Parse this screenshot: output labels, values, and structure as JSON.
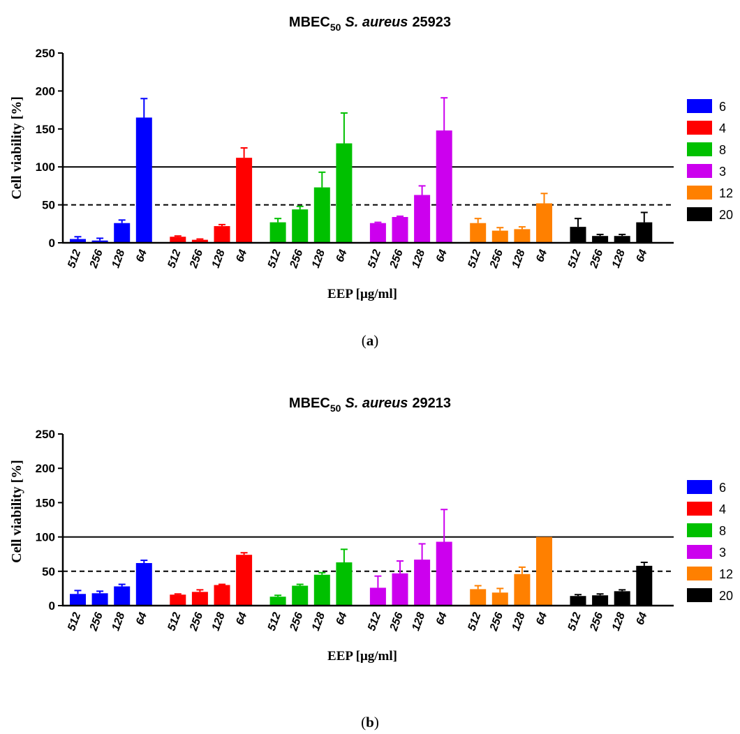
{
  "chart_data": [
    {
      "type": "bar",
      "title": "MBEC",
      "title_subscript": "50",
      "title_species": "S. aureus",
      "title_strain": "25923",
      "ylabel": "Cell viability [%]",
      "xlabel": "EEP [μg/ml]",
      "ylim": [
        0,
        250
      ],
      "yticks": [
        0,
        50,
        100,
        150,
        200,
        250
      ],
      "reference_lines": [
        {
          "value": 100,
          "style": "solid"
        },
        {
          "value": 50,
          "style": "dashed"
        }
      ],
      "legend_position": "right",
      "categories": [
        "512",
        "256",
        "128",
        "64"
      ],
      "series": [
        {
          "name": "6",
          "color": "#0000ff",
          "values": [
            5,
            3,
            26,
            165
          ],
          "errors": [
            3,
            3,
            4,
            25
          ]
        },
        {
          "name": "4",
          "color": "#ff0000",
          "values": [
            8,
            4,
            22,
            112
          ],
          "errors": [
            1,
            1,
            2,
            13
          ]
        },
        {
          "name": "8",
          "color": "#00c000",
          "values": [
            27,
            44,
            73,
            131
          ],
          "errors": [
            5,
            4,
            20,
            40
          ]
        },
        {
          "name": "3",
          "color": "#cc00ee",
          "values": [
            26,
            34,
            63,
            148
          ],
          "errors": [
            1,
            1,
            12,
            43
          ]
        },
        {
          "name": "12",
          "color": "#ff8000",
          "values": [
            26,
            16,
            18,
            52
          ],
          "errors": [
            6,
            4,
            3,
            13
          ]
        },
        {
          "name": "20",
          "color": "#000000",
          "values": [
            21,
            9,
            9,
            27
          ],
          "errors": [
            11,
            2,
            2,
            13
          ]
        }
      ],
      "caption_label": "a"
    },
    {
      "type": "bar",
      "title": "MBEC",
      "title_subscript": "50",
      "title_species": "S. aureus",
      "title_strain": "29213",
      "ylabel": "Cell viability [%]",
      "xlabel": "EEP [μg/ml]",
      "ylim": [
        0,
        250
      ],
      "yticks": [
        0,
        50,
        100,
        150,
        200,
        250
      ],
      "reference_lines": [
        {
          "value": 100,
          "style": "solid"
        },
        {
          "value": 50,
          "style": "dashed"
        }
      ],
      "legend_position": "right",
      "categories": [
        "512",
        "256",
        "128",
        "64"
      ],
      "series": [
        {
          "name": "6",
          "color": "#0000ff",
          "values": [
            17,
            18,
            28,
            62
          ],
          "errors": [
            5,
            3,
            3,
            4
          ]
        },
        {
          "name": "4",
          "color": "#ff0000",
          "values": [
            16,
            20,
            30,
            74
          ],
          "errors": [
            1,
            3,
            1,
            3
          ]
        },
        {
          "name": "8",
          "color": "#00c000",
          "values": [
            13,
            29,
            45,
            63
          ],
          "errors": [
            2,
            2,
            3,
            19
          ]
        },
        {
          "name": "3",
          "color": "#cc00ee",
          "values": [
            26,
            47,
            67,
            93
          ],
          "errors": [
            17,
            18,
            23,
            47
          ]
        },
        {
          "name": "12",
          "color": "#ff8000",
          "values": [
            24,
            19,
            46,
            100
          ],
          "errors": [
            5,
            6,
            10,
            0
          ]
        },
        {
          "name": "20",
          "color": "#000000",
          "values": [
            14,
            15,
            21,
            58
          ],
          "errors": [
            2,
            2,
            2,
            5
          ]
        }
      ],
      "caption_label": "b"
    }
  ]
}
